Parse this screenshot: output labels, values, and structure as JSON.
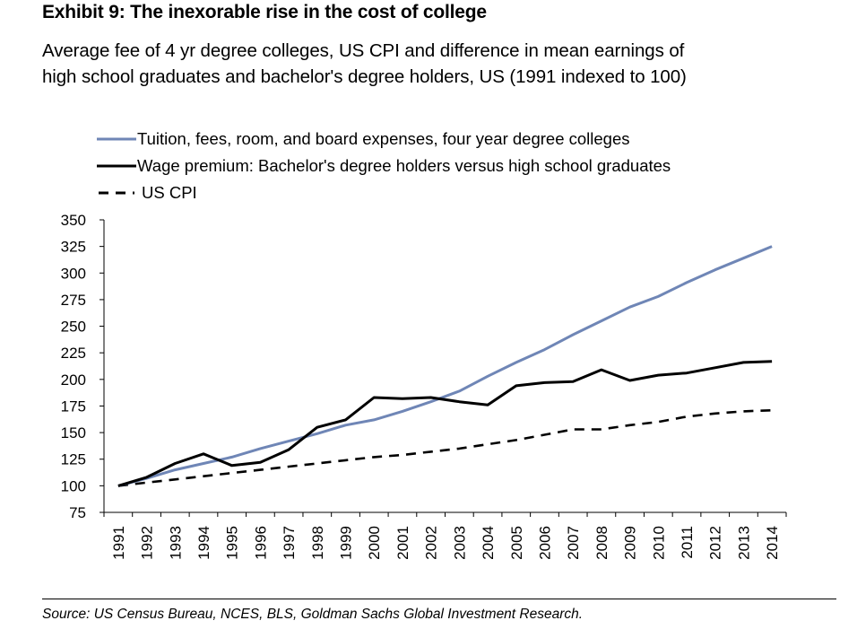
{
  "header": {
    "exhibit_title": "Exhibit 9: The inexorable rise in the cost of college",
    "subtitle_line1": "Average fee of 4 yr degree colleges, US CPI and difference in mean earnings of",
    "subtitle_line2": "high school graduates and bachelor's degree holders, US (1991 indexed to 100)"
  },
  "footer": {
    "source": "Source: US Census Bureau, NCES, BLS, Goldman Sachs Global Investment Research."
  },
  "colors": {
    "tuition": "#6f86b6",
    "wage": "#000000",
    "cpi": "#000000"
  },
  "chart_data": {
    "type": "line",
    "title": "Exhibit 9: The inexorable rise in the cost of college",
    "xlabel": "",
    "ylabel": "",
    "ylim": [
      75,
      350
    ],
    "yticks": [
      75,
      100,
      125,
      150,
      175,
      200,
      225,
      250,
      275,
      300,
      325,
      350
    ],
    "grid": false,
    "legend_position": "top-left",
    "categories": [
      "1991",
      "1992",
      "1993",
      "1994",
      "1995",
      "1996",
      "1997",
      "1998",
      "1999",
      "2000",
      "2001",
      "2002",
      "2003",
      "2004",
      "2005",
      "2006",
      "2007",
      "2008",
      "2009",
      "2010",
      "2011",
      "2012",
      "2013",
      "2014"
    ],
    "series": [
      {
        "name": "Tuition, fees, room, and board expenses, four year degree colleges",
        "style": "solid",
        "color": "#6f86b6",
        "values": [
          100,
          107,
          115,
          121,
          127,
          135,
          142,
          149,
          157,
          162,
          170,
          179,
          189,
          203,
          216,
          228,
          242,
          255,
          268,
          278,
          291,
          303,
          314,
          325
        ]
      },
      {
        "name": "Wage premium: Bachelor's degree holders versus high school graduates",
        "style": "solid",
        "color": "#000000",
        "values": [
          100,
          108,
          121,
          130,
          119,
          122,
          134,
          155,
          162,
          183,
          182,
          183,
          179,
          176,
          194,
          197,
          198,
          209,
          199,
          204,
          206,
          211,
          216,
          217
        ]
      },
      {
        "name": "US CPI",
        "style": "dashed",
        "color": "#000000",
        "values": [
          100,
          103,
          106,
          109,
          112,
          115,
          118,
          121,
          124,
          127,
          129,
          132,
          135,
          139,
          143,
          148,
          153,
          153,
          157,
          160,
          165,
          168,
          170,
          171
        ]
      }
    ]
  }
}
